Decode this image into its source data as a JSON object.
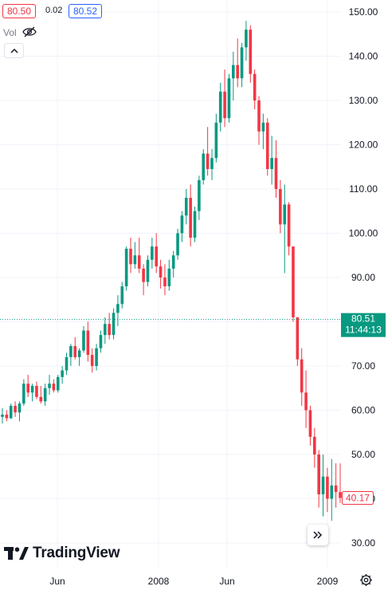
{
  "header": {
    "bid": "80.50",
    "spread": "0.02",
    "ask": "80.52",
    "volume_label": "Vol",
    "eye_icon": "eye-off-icon",
    "collapse_icon": "chevron-up-icon"
  },
  "price_labels": {
    "current_price": "80.51",
    "countdown": "11:44:13",
    "last_price": "40.17"
  },
  "branding": {
    "logo_text": "TradingView",
    "logo_icon": "tradingview-logo-icon"
  },
  "controls": {
    "scroll_icon": "double-chevron-right-icon",
    "settings_icon": "gear-icon"
  },
  "colors": {
    "up": "#089981",
    "down": "#f23645",
    "current_price": "#089981",
    "grid": "#f0f3fa",
    "accent_blue": "#2962ff"
  },
  "chart_data": {
    "type": "candlestick",
    "y_ticks": [
      "150.00",
      "140.00",
      "130.00",
      "120.00",
      "110.00",
      "100.00",
      "90.00",
      "80.00",
      "70.00",
      "60.00",
      "50.00",
      "40.00",
      "30.00"
    ],
    "x_ticks": [
      "Jun",
      "2008",
      "Jun",
      "2009"
    ],
    "ylim": [
      28,
      152
    ],
    "current_price": 80.51,
    "last_price": 40.17,
    "grid": true,
    "series": [
      {
        "ohlc": [
          [
            58.5,
            60.5,
            57,
            59
          ],
          [
            59,
            60,
            57.5,
            58.2
          ],
          [
            58.2,
            61.5,
            58,
            61
          ],
          [
            61,
            62,
            58.5,
            59.5
          ],
          [
            59.5,
            62,
            57.5,
            61.5
          ],
          [
            61.5,
            67,
            61,
            66
          ],
          [
            66,
            68,
            63,
            64
          ],
          [
            64,
            66,
            62,
            65.5
          ],
          [
            65.5,
            66.5,
            62.5,
            63
          ],
          [
            63,
            65.5,
            61.5,
            62
          ],
          [
            62,
            66,
            61,
            65
          ],
          [
            65,
            68,
            63.5,
            66
          ],
          [
            66,
            67,
            64,
            64.5
          ],
          [
            64.5,
            68,
            64,
            67.5
          ],
          [
            67.5,
            70,
            66,
            69
          ],
          [
            69,
            73,
            68,
            72
          ],
          [
            72,
            75,
            70,
            74.5
          ],
          [
            74.5,
            76.5,
            71.5,
            72
          ],
          [
            72,
            74,
            70,
            73.5
          ],
          [
            73.5,
            79,
            73,
            78
          ],
          [
            78,
            80,
            71,
            72.5
          ],
          [
            72.5,
            74,
            68.5,
            70
          ],
          [
            70,
            75,
            69,
            74
          ],
          [
            74,
            78,
            73,
            77
          ],
          [
            77,
            81,
            75,
            79.5
          ],
          [
            79.5,
            82,
            76,
            77
          ],
          [
            77,
            83,
            76,
            82
          ],
          [
            82,
            86,
            79,
            84
          ],
          [
            84,
            89,
            83,
            88
          ],
          [
            88,
            97,
            87,
            96.5
          ],
          [
            96.5,
            99,
            91,
            93
          ],
          [
            93,
            98,
            92,
            95
          ],
          [
            95,
            99,
            91,
            92
          ],
          [
            92,
            93,
            86,
            89
          ],
          [
            89,
            95,
            88,
            94
          ],
          [
            94,
            99,
            92,
            97
          ],
          [
            97,
            100,
            91,
            92.5
          ],
          [
            92.5,
            94,
            87.5,
            90
          ],
          [
            90,
            93,
            86,
            88
          ],
          [
            88,
            94,
            87,
            92
          ],
          [
            92,
            96,
            90,
            95
          ],
          [
            95,
            101,
            94,
            100
          ],
          [
            100,
            105,
            98,
            104
          ],
          [
            104,
            110,
            102,
            108
          ],
          [
            108,
            111,
            97,
            99
          ],
          [
            99,
            106,
            98,
            105
          ],
          [
            105,
            113,
            103,
            112
          ],
          [
            112,
            119,
            111,
            118
          ],
          [
            118,
            124,
            113,
            114.5
          ],
          [
            114.5,
            119,
            112,
            117
          ],
          [
            117,
            127,
            116,
            125
          ],
          [
            125,
            134,
            123,
            132
          ],
          [
            132,
            137,
            124,
            126
          ],
          [
            126,
            136,
            125,
            135
          ],
          [
            135,
            141,
            130,
            138
          ],
          [
            138,
            144,
            133,
            135
          ],
          [
            135,
            143,
            133,
            142
          ],
          [
            142,
            148,
            139,
            146
          ],
          [
            146,
            147,
            134,
            136
          ],
          [
            136,
            137,
            128,
            130
          ],
          [
            130,
            131,
            120,
            123
          ],
          [
            123,
            127,
            119,
            125
          ],
          [
            125,
            126,
            113,
            114.5
          ],
          [
            114.5,
            122,
            111,
            117
          ],
          [
            117,
            121,
            108,
            110
          ],
          [
            110,
            112,
            100,
            102
          ],
          [
            102,
            111,
            91,
            106.5
          ],
          [
            106.5,
            107,
            95,
            97
          ],
          [
            97,
            97,
            80,
            81
          ],
          [
            81,
            81,
            70,
            71.5
          ],
          [
            71.5,
            74,
            61,
            64
          ],
          [
            64,
            69,
            56,
            60
          ],
          [
            60,
            61,
            52,
            54
          ],
          [
            54,
            56,
            47,
            50
          ],
          [
            50,
            51,
            38,
            41
          ],
          [
            41,
            50,
            36,
            45
          ],
          [
            45,
            47,
            37,
            40
          ],
          [
            40,
            49,
            35,
            43
          ],
          [
            43,
            48,
            38,
            41.5
          ],
          [
            41.5,
            48,
            39,
            40.17
          ]
        ]
      }
    ]
  }
}
